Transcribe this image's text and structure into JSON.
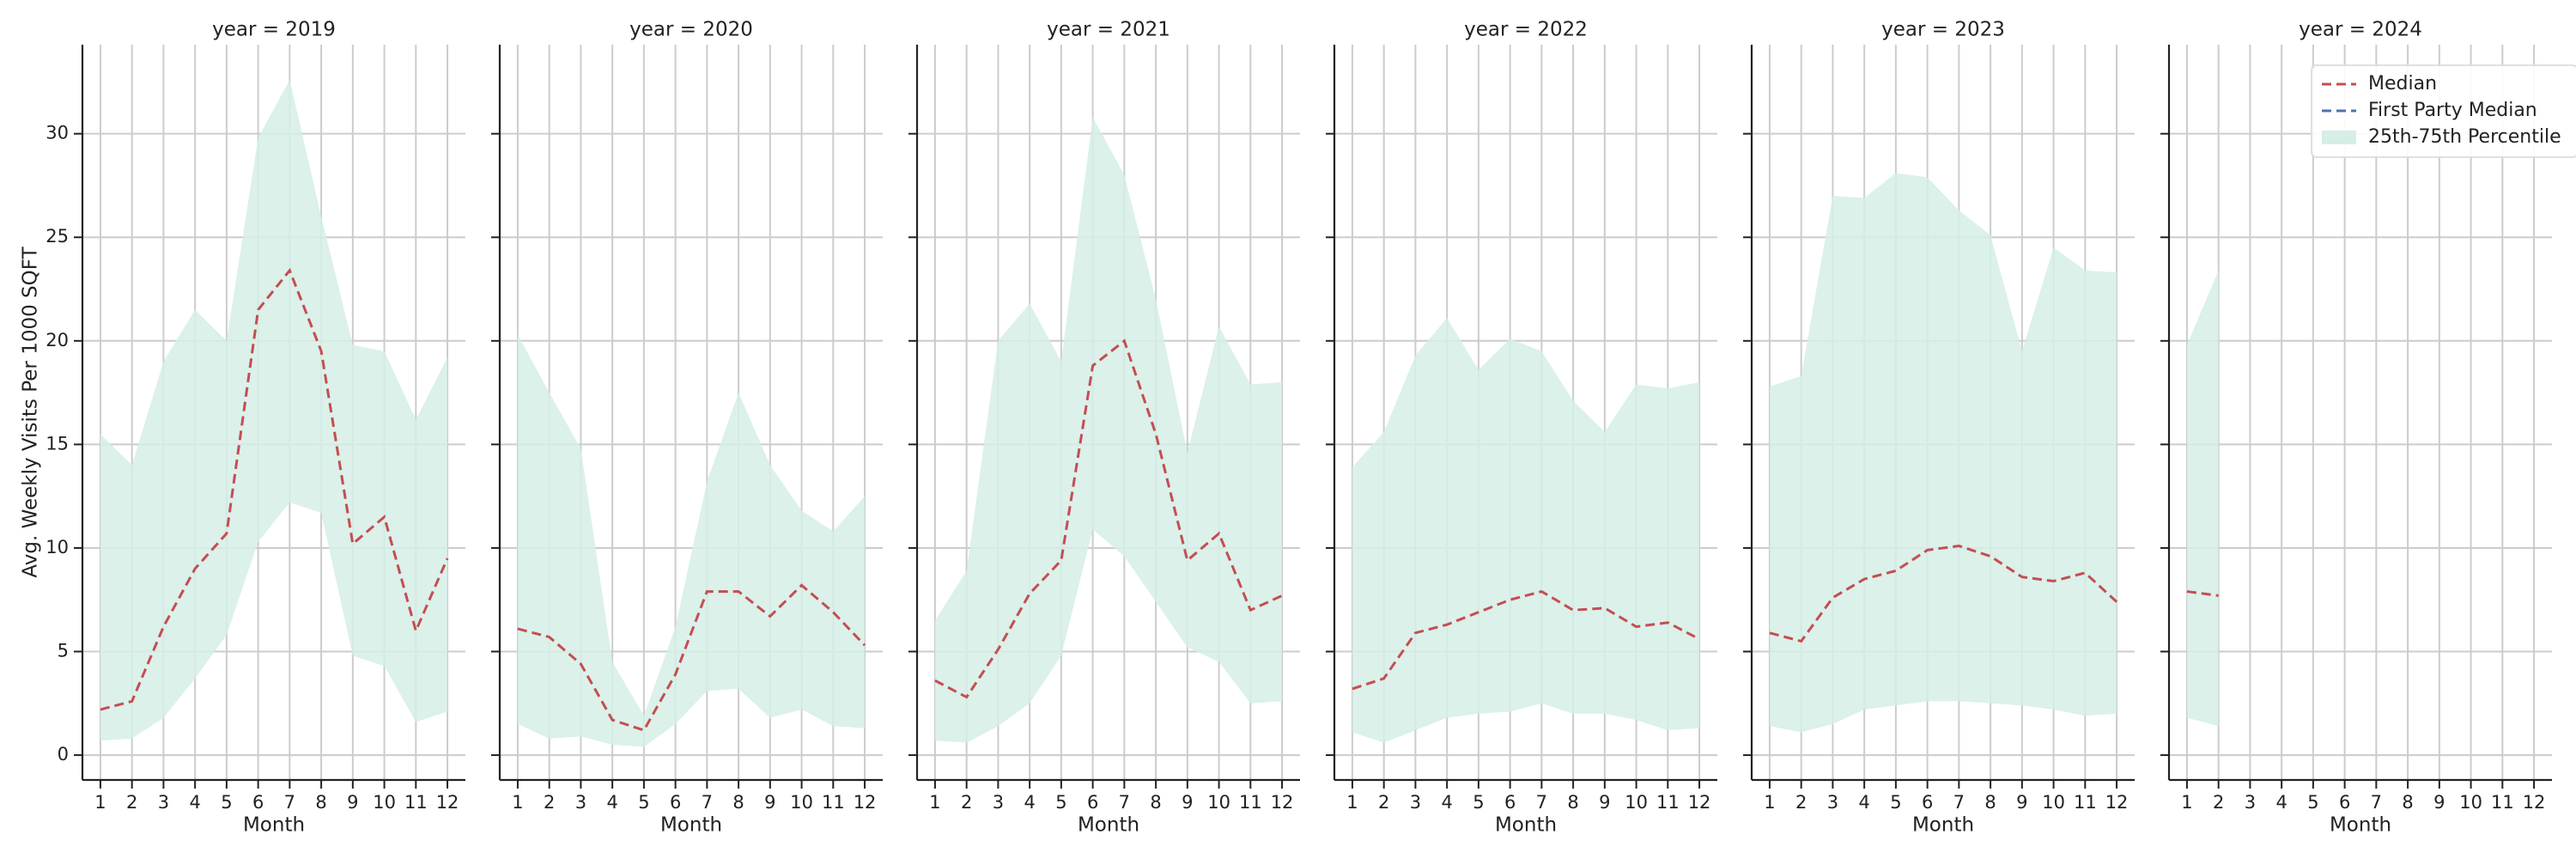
{
  "chart_data": [
    {
      "type": "line",
      "title": "year = 2019",
      "xlabel": "Month",
      "ylabel": "Avg. Weekly Visits Per 1000 SQFT",
      "ytick_labels": true,
      "x": [
        1,
        2,
        3,
        4,
        5,
        6,
        7,
        8,
        9,
        10,
        11,
        12
      ],
      "xlim": [
        0.43,
        12.57
      ],
      "xticks": [
        1,
        2,
        3,
        4,
        5,
        6,
        7,
        8,
        9,
        10,
        11,
        12
      ],
      "ylim": [
        -1.2,
        34.3
      ],
      "yticks": [
        0,
        5,
        10,
        15,
        20,
        25,
        30
      ],
      "grid": true,
      "series": [
        {
          "color": "#c44e52",
          "dashed": true,
          "values": [
            2.2,
            2.6,
            6.2,
            9,
            10.7,
            21.5,
            23.4,
            19.5,
            10.2,
            11.5,
            6,
            9.5
          ]
        }
      ],
      "band": {
        "color": "#d5eee6",
        "lower": [
          0.7,
          0.8,
          1.8,
          3.7,
          5.8,
          10.3,
          12.2,
          11.7,
          4.8,
          4.3,
          1.6,
          2.1
        ],
        "upper": [
          15.5,
          14,
          19,
          21.5,
          20,
          29.8,
          32.6,
          26,
          19.8,
          19.5,
          16.2,
          19.2
        ]
      }
    },
    {
      "type": "line",
      "title": "year = 2020",
      "xlabel": "Month",
      "ytick_labels": false,
      "x": [
        1,
        2,
        3,
        4,
        5,
        6,
        7,
        8,
        9,
        10,
        11,
        12
      ],
      "xlim": [
        0.43,
        12.57
      ],
      "xticks": [
        1,
        2,
        3,
        4,
        5,
        6,
        7,
        8,
        9,
        10,
        11,
        12
      ],
      "ylim": [
        -1.2,
        34.3
      ],
      "yticks": [
        0,
        5,
        10,
        15,
        20,
        25,
        30
      ],
      "grid": true,
      "series": [
        {
          "color": "#c44e52",
          "dashed": true,
          "values": [
            6.1,
            5.7,
            4.4,
            1.7,
            1.2,
            3.9,
            7.9,
            7.9,
            6.7,
            8.2,
            6.9,
            5.3
          ]
        }
      ],
      "band": {
        "color": "#d5eee6",
        "lower": [
          1.5,
          0.8,
          0.9,
          0.5,
          0.4,
          1.5,
          3.1,
          3.2,
          1.8,
          2.2,
          1.4,
          1.3
        ],
        "upper": [
          20.3,
          17.5,
          14.8,
          4.5,
          1.9,
          6.2,
          13.2,
          17.5,
          14,
          11.8,
          10.8,
          12.5
        ]
      }
    },
    {
      "type": "line",
      "title": "year = 2021",
      "xlabel": "Month",
      "ytick_labels": false,
      "x": [
        1,
        2,
        3,
        4,
        5,
        6,
        7,
        8,
        9,
        10,
        11,
        12
      ],
      "xlim": [
        0.43,
        12.57
      ],
      "xticks": [
        1,
        2,
        3,
        4,
        5,
        6,
        7,
        8,
        9,
        10,
        11,
        12
      ],
      "ylim": [
        -1.2,
        34.3
      ],
      "yticks": [
        0,
        5,
        10,
        15,
        20,
        25,
        30
      ],
      "grid": true,
      "series": [
        {
          "color": "#c44e52",
          "dashed": true,
          "values": [
            3.6,
            2.8,
            5.1,
            7.8,
            9.4,
            18.8,
            20,
            15.5,
            9.4,
            10.7,
            7,
            7.7
          ]
        }
      ],
      "band": {
        "color": "#d5eee6",
        "lower": [
          0.7,
          0.6,
          1.4,
          2.5,
          4.8,
          10.9,
          9.6,
          7.4,
          5.2,
          4.5,
          2.5,
          2.6
        ],
        "upper": [
          6.5,
          8.9,
          20,
          21.8,
          19,
          30.8,
          28,
          22,
          14.6,
          20.7,
          17.9,
          18
        ]
      }
    },
    {
      "type": "line",
      "title": "year = 2022",
      "xlabel": "Month",
      "ytick_labels": false,
      "x": [
        1,
        2,
        3,
        4,
        5,
        6,
        7,
        8,
        9,
        10,
        11,
        12
      ],
      "xlim": [
        0.43,
        12.57
      ],
      "xticks": [
        1,
        2,
        3,
        4,
        5,
        6,
        7,
        8,
        9,
        10,
        11,
        12
      ],
      "ylim": [
        -1.2,
        34.3
      ],
      "yticks": [
        0,
        5,
        10,
        15,
        20,
        25,
        30
      ],
      "grid": true,
      "series": [
        {
          "color": "#c44e52",
          "dashed": true,
          "values": [
            3.2,
            3.7,
            5.9,
            6.3,
            6.9,
            7.5,
            7.9,
            7,
            7.1,
            6.2,
            6.4,
            5.6
          ]
        }
      ],
      "band": {
        "color": "#d5eee6",
        "lower": [
          1.1,
          0.6,
          1.2,
          1.8,
          2,
          2.1,
          2.5,
          2,
          2,
          1.7,
          1.2,
          1.3
        ],
        "upper": [
          13.9,
          15.6,
          19.3,
          21.1,
          18.6,
          20.1,
          19.5,
          17.1,
          15.6,
          17.9,
          17.7,
          18
        ]
      }
    },
    {
      "type": "line",
      "title": "year = 2023",
      "xlabel": "Month",
      "ytick_labels": false,
      "x": [
        1,
        2,
        3,
        4,
        5,
        6,
        7,
        8,
        9,
        10,
        11,
        12
      ],
      "xlim": [
        0.43,
        12.57
      ],
      "xticks": [
        1,
        2,
        3,
        4,
        5,
        6,
        7,
        8,
        9,
        10,
        11,
        12
      ],
      "ylim": [
        -1.2,
        34.3
      ],
      "yticks": [
        0,
        5,
        10,
        15,
        20,
        25,
        30
      ],
      "grid": true,
      "series": [
        {
          "color": "#c44e52",
          "dashed": true,
          "values": [
            5.9,
            5.5,
            7.6,
            8.5,
            8.9,
            9.9,
            10.1,
            9.6,
            8.6,
            8.4,
            8.8,
            7.4
          ]
        }
      ],
      "band": {
        "color": "#d5eee6",
        "lower": [
          1.4,
          1.1,
          1.5,
          2.2,
          2.4,
          2.6,
          2.6,
          2.5,
          2.4,
          2.2,
          1.9,
          2.0
        ],
        "upper": [
          17.8,
          18.3,
          27,
          26.9,
          28.1,
          27.9,
          26.3,
          25.1,
          19.5,
          24.5,
          23.4,
          23.3
        ]
      }
    },
    {
      "type": "line",
      "title": "year = 2024",
      "xlabel": "Month",
      "ytick_labels": false,
      "legend": "upper right",
      "x": [
        1,
        2,
        3,
        4,
        5,
        6,
        7,
        8,
        9,
        10,
        11,
        12
      ],
      "xlim": [
        0.43,
        12.57
      ],
      "xticks": [
        1,
        2,
        3,
        4,
        5,
        6,
        7,
        8,
        9,
        10,
        11,
        12
      ],
      "ylim": [
        -1.2,
        34.3
      ],
      "yticks": [
        0,
        5,
        10,
        15,
        20,
        25,
        30
      ],
      "grid": true,
      "series": [
        {
          "name": "Median",
          "color": "#c44e52",
          "dashed": true,
          "values": [
            7.9,
            7.7,
            null,
            null,
            null,
            null,
            null,
            null,
            null,
            null,
            null,
            null
          ]
        },
        {
          "name": "First Party Median",
          "color": "#4c72b0",
          "dashed": true,
          "values": [
            null,
            null,
            null,
            null,
            null,
            null,
            null,
            null,
            null,
            null,
            null,
            null
          ]
        }
      ],
      "band": {
        "name": "25th-75th Percentile",
        "color": "#d5eee6",
        "lower": [
          1.8,
          1.4,
          null,
          null,
          null,
          null,
          null,
          null,
          null,
          null,
          null,
          null
        ],
        "upper": [
          19.8,
          23.4,
          null,
          null,
          null,
          null,
          null,
          null,
          null,
          null,
          null,
          null
        ]
      }
    }
  ]
}
